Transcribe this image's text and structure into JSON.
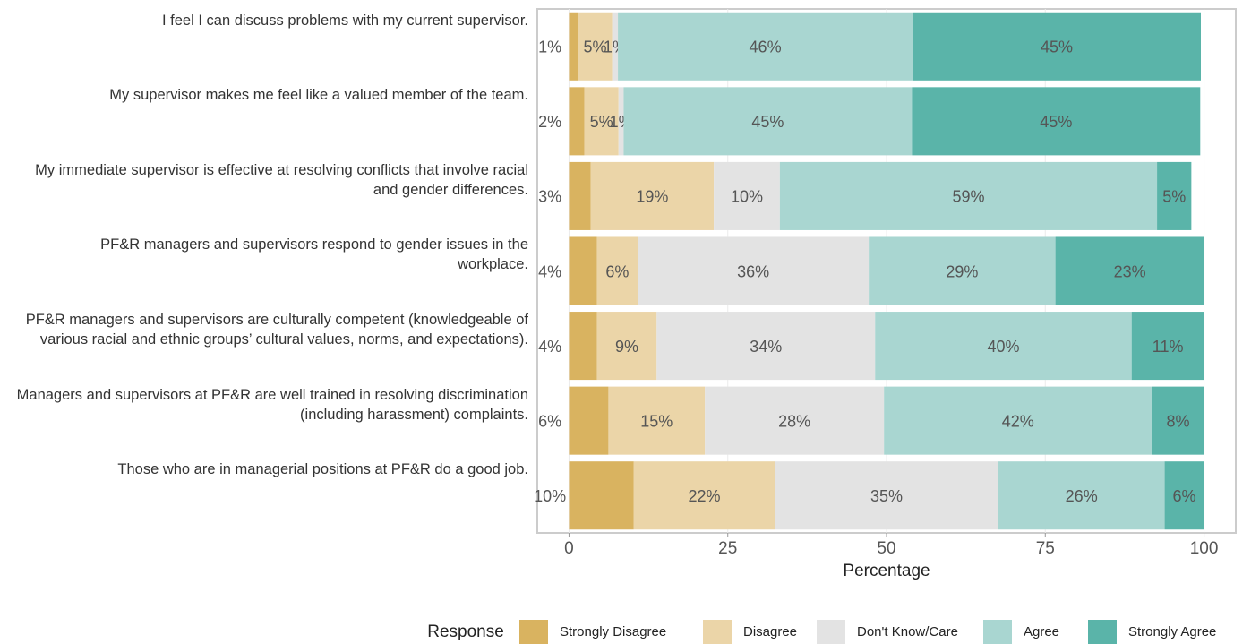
{
  "chart_data": {
    "type": "bar",
    "orientation": "horizontal",
    "stacked": true,
    "categories": [
      "I feel I can discuss problems with my current supervisor.",
      "My supervisor makes me feel like a valued member of the team.",
      "My immediate supervisor is effective at resolving conflicts that involve racial and gender differences.",
      "PF&R managers and supervisors respond to gender issues in the workplace.",
      "PF&R managers and supervisors are culturally competent (knowledgeable of various racial and ethnic groups’ cultural values, norms, and expectations).",
      "Managers and supervisors at PF&R are well trained in resolving discrimination (including harassment) complaints.",
      "Those who are in managerial positions at PF&R do a good job."
    ],
    "series": [
      {
        "name": "Strongly Disagree",
        "color": "#d9b360",
        "values": [
          1.4,
          2.4,
          3.4,
          4.4,
          4.4,
          6.2,
          10.2
        ],
        "value_labels": [
          "1%",
          "2%",
          "3%",
          "4%",
          "4%",
          "6%",
          "10%"
        ]
      },
      {
        "name": "Disagree",
        "color": "#ebd5a8",
        "values": [
          5.4,
          5.4,
          19.4,
          6.4,
          9.4,
          15.2,
          22.2
        ],
        "value_labels": [
          "5%",
          "5%",
          "19%",
          "6%",
          "9%",
          "15%",
          "22%"
        ]
      },
      {
        "name": "Don't Know/Care",
        "color": "#e3e3e3",
        "values": [
          0.9,
          0.8,
          10.4,
          36.4,
          34.4,
          28.2,
          35.2
        ],
        "value_labels": [
          "1%",
          "1%",
          "10%",
          "36%",
          "34%",
          "28%",
          "35%"
        ]
      },
      {
        "name": "Agree",
        "color": "#a9d6d1",
        "values": [
          46.4,
          45.4,
          59.4,
          29.4,
          40.4,
          42.2,
          26.2
        ],
        "value_labels": [
          "46%",
          "45%",
          "59%",
          "29%",
          "40%",
          "42%",
          "26%"
        ]
      },
      {
        "name": "Strongly Agree",
        "color": "#5ab4a9",
        "values": [
          45.4,
          45.4,
          5.4,
          23.4,
          11.4,
          8.2,
          6.2
        ],
        "value_labels": [
          "45%",
          "45%",
          "5%",
          "23%",
          "11%",
          "8%",
          "6%"
        ]
      }
    ],
    "xlabel": "Percentage",
    "xlim": [
      -5,
      105
    ],
    "xticks": [
      0,
      25,
      50,
      75,
      100
    ],
    "grid": true,
    "legend_title": "Response",
    "legend": "bottom"
  }
}
